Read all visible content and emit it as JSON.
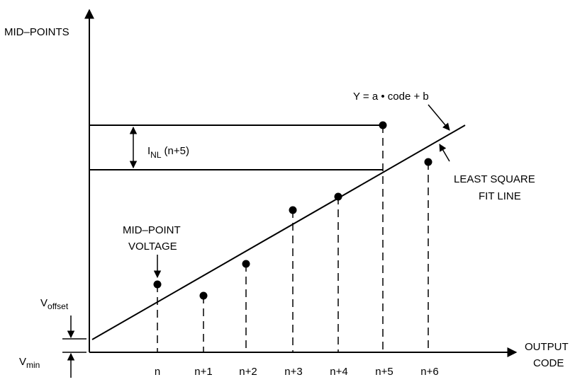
{
  "axes": {
    "y_label": "MID–POINTS",
    "x_label_line1": "OUTPUT",
    "x_label_line2": "CODE"
  },
  "codes": [
    "n",
    "n+1",
    "n+2",
    "n+3",
    "n+4",
    "n+5",
    "n+6"
  ],
  "labels": {
    "inl_main": "I",
    "inl_sub": "NL",
    "inl_arg": "(n+5)",
    "equation": "Y  =  a • code + b",
    "fit_line_1": "LEAST SQUARE",
    "fit_line_2": "FIT LINE",
    "midpoint_1": "MID–POINT",
    "midpoint_2": "VOLTAGE",
    "voffset_main": "V",
    "voffset_sub": "offset",
    "vmin_main": "V",
    "vmin_sub": "min"
  }
}
